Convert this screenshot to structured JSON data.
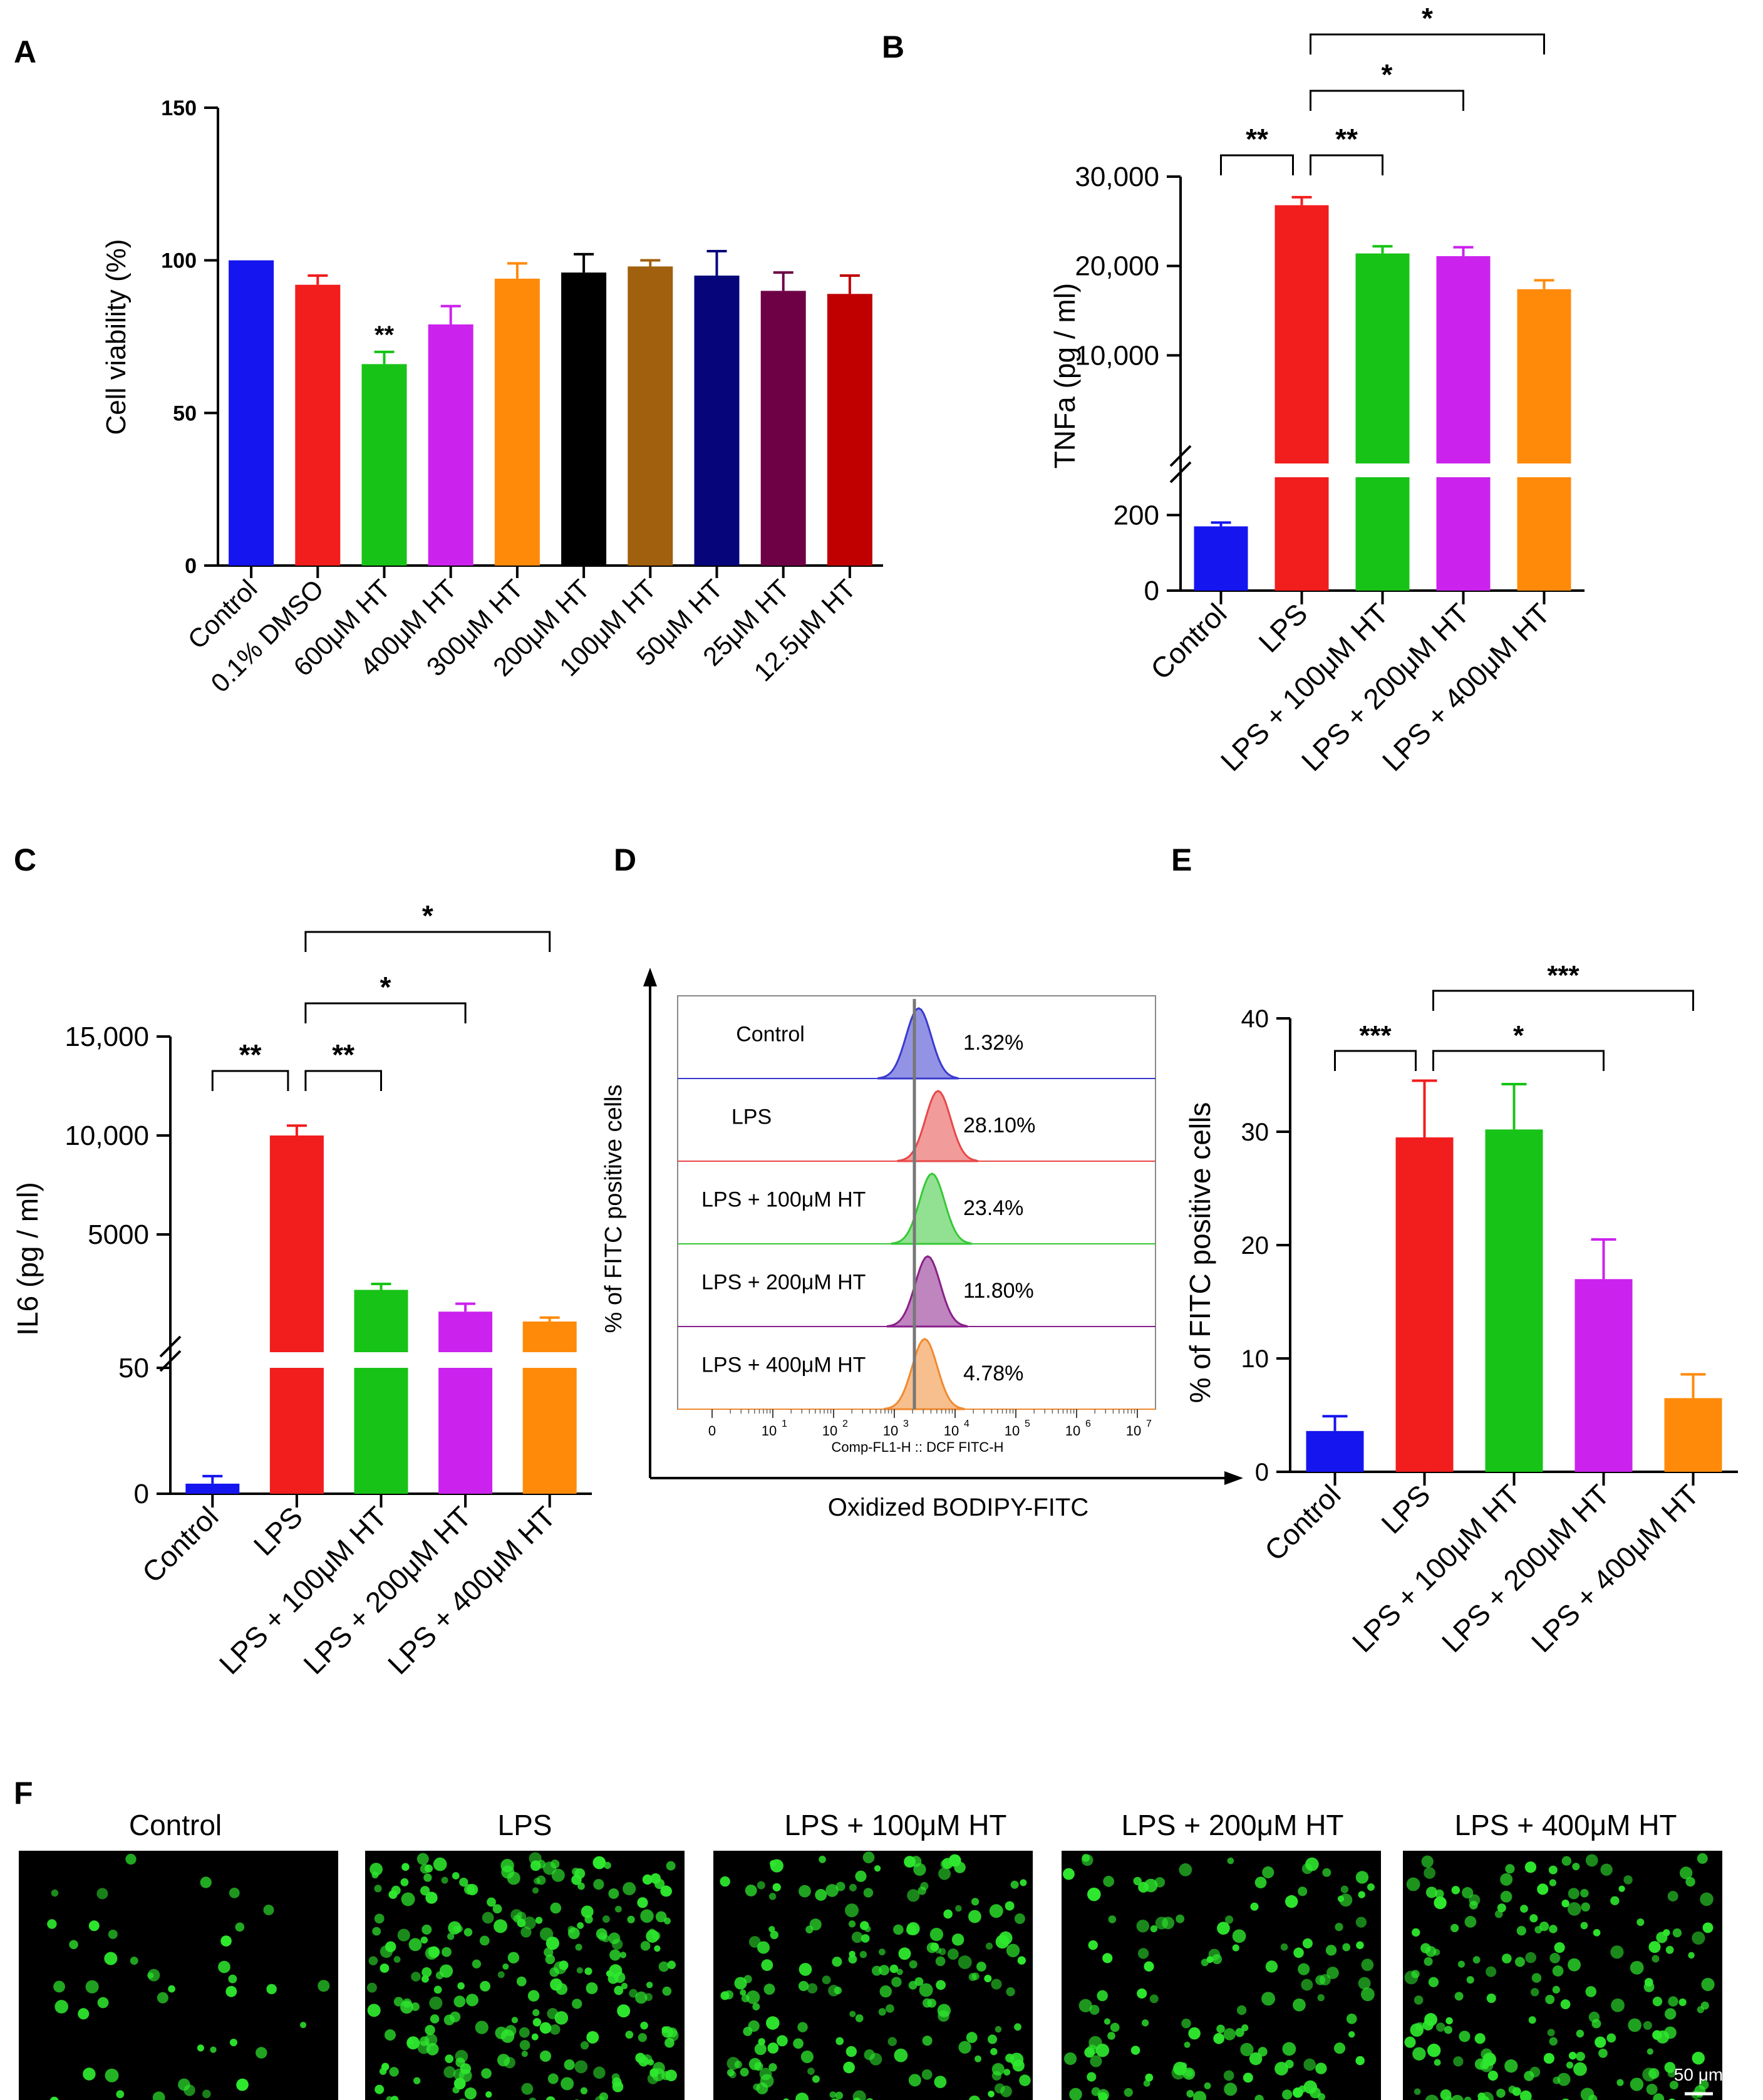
{
  "panel_labels": {
    "A": "A",
    "B": "B",
    "C": "C",
    "D": "D",
    "E": "E",
    "F": "F"
  },
  "chart_data": [
    {
      "id": "A",
      "type": "bar",
      "title": "",
      "xlabel": "",
      "ylabel": "Cell viability (%)",
      "ylim": [
        0,
        150
      ],
      "yticks": [
        "0",
        "50",
        "100",
        "150"
      ],
      "categories": [
        "Control",
        "0.1% DMSO",
        "600μM HT",
        "400μM HT",
        "300μM HT",
        "200μM HT",
        "100μM HT",
        "50μM HT",
        "25μM HT",
        "12.5μM HT"
      ],
      "values": [
        100,
        92,
        66,
        79,
        94,
        96,
        98,
        95,
        90,
        89
      ],
      "errors": [
        0,
        3,
        4,
        6,
        5,
        6,
        2,
        8,
        6,
        6
      ],
      "colors": [
        "#1515f0",
        "#f21d1d",
        "#17c317",
        "#cc22ee",
        "#ff8a0a",
        "#000000",
        "#a0600e",
        "#06067a",
        "#6e0046",
        "#c00000"
      ],
      "annotations": [
        {
          "category": "600μM HT",
          "label": "**"
        }
      ]
    },
    {
      "id": "B",
      "type": "bar",
      "title": "",
      "xlabel": "",
      "ylabel": "TNFa (pg / ml)",
      "axis_break": true,
      "lower_range": [
        0,
        300
      ],
      "upper_range": [
        0,
        30000
      ],
      "yticks_lower": [
        "0",
        "200"
      ],
      "yticks_upper": [
        "10,000",
        "20,000",
        "30,000"
      ],
      "categories": [
        "Control",
        "LPS",
        "LPS + 100μM HT",
        "LPS + 200μM HT",
        "LPS + 400μM HT"
      ],
      "values": [
        170,
        26800,
        21400,
        21100,
        17400
      ],
      "errors": [
        10,
        900,
        800,
        1000,
        1000
      ],
      "colors": [
        "#1515f0",
        "#f21d1d",
        "#17c317",
        "#cc22ee",
        "#ff8a0a"
      ],
      "significance": [
        {
          "from": "Control",
          "to": "LPS",
          "label": "**"
        },
        {
          "from": "LPS",
          "to": "LPS + 100μM HT",
          "label": "**"
        },
        {
          "from": "LPS",
          "to": "LPS + 200μM HT",
          "label": "*"
        },
        {
          "from": "LPS",
          "to": "LPS + 400μM HT",
          "label": "*"
        }
      ]
    },
    {
      "id": "C",
      "type": "bar",
      "title": "",
      "xlabel": "",
      "ylabel": "IL6 (pg / ml)",
      "axis_break": true,
      "lower_range": [
        0,
        50
      ],
      "upper_range": [
        0,
        15000
      ],
      "yticks_lower": [
        "0",
        "50"
      ],
      "yticks_upper": [
        "5000",
        "10,000",
        "15,000"
      ],
      "categories": [
        "Control",
        "LPS",
        "LPS + 100μM HT",
        "LPS + 200μM HT",
        "LPS + 400μM HT"
      ],
      "values": [
        4,
        10000,
        2200,
        1100,
        600
      ],
      "errors": [
        3,
        500,
        300,
        400,
        200
      ],
      "colors": [
        "#1515f0",
        "#f21d1d",
        "#17c317",
        "#cc22ee",
        "#ff8a0a"
      ],
      "significance": [
        {
          "from": "Control",
          "to": "LPS",
          "label": "**"
        },
        {
          "from": "LPS",
          "to": "LPS + 100μM HT",
          "label": "**"
        },
        {
          "from": "LPS",
          "to": "LPS + 200μM HT",
          "label": "*"
        },
        {
          "from": "LPS",
          "to": "LPS + 400μM HT",
          "label": "*"
        }
      ]
    },
    {
      "id": "D",
      "type": "histogram",
      "xlabel": "Oxidized BODIPY-FITC",
      "ylabel": "% of FITC positive cells",
      "inner_xlabel": "Comp-FL1-H :: DCF FITC-H",
      "xtick_labels": [
        "0",
        "10",
        "10",
        "10",
        "10",
        "10",
        "10",
        "10"
      ],
      "xtick_exponents": [
        "",
        "1",
        "2",
        "3",
        "4",
        "5",
        "6",
        "7"
      ],
      "rows": [
        {
          "label": "Control",
          "percent": "1.32%",
          "color": "#3a3ad0",
          "peak": 3.4
        },
        {
          "label": "LPS",
          "percent": "28.10%",
          "color": "#e84848",
          "peak": 3.72
        },
        {
          "label": "LPS + 100μM HT",
          "percent": "23.4%",
          "color": "#38c838",
          "peak": 3.62
        },
        {
          "label": "LPS + 200μM HT",
          "percent": "11.80%",
          "color": "#8a208a",
          "peak": 3.55
        },
        {
          "label": "LPS + 400μM HT",
          "percent": "4.78%",
          "color": "#f08a30",
          "peak": 3.5
        }
      ]
    },
    {
      "id": "E",
      "type": "bar",
      "title": "",
      "xlabel": "",
      "ylabel": "% of FITC positive cells",
      "ylim": [
        0,
        40
      ],
      "yticks": [
        "0",
        "10",
        "20",
        "30",
        "40"
      ],
      "categories": [
        "Control",
        "LPS",
        "LPS + 100μM HT",
        "LPS + 200μM HT",
        "LPS + 400μM HT"
      ],
      "values": [
        3.6,
        29.5,
        30.2,
        17.0,
        6.5
      ],
      "errors": [
        1.3,
        5.0,
        4.0,
        3.5,
        2.1
      ],
      "colors": [
        "#1515f0",
        "#f21d1d",
        "#17c317",
        "#cc22ee",
        "#ff8a0a"
      ],
      "significance": [
        {
          "from": "Control",
          "to": "LPS",
          "label": "***"
        },
        {
          "from": "LPS",
          "to": "LPS + 200μM HT",
          "label": "*"
        },
        {
          "from": "LPS",
          "to": "LPS + 400μM HT",
          "label": "***"
        }
      ]
    }
  ],
  "microscopy": {
    "titles": [
      "Control",
      "LPS",
      "LPS + 100μM HT",
      "LPS + 200μM HT",
      "LPS + 400μM HT"
    ],
    "scale_bar": "50 μm",
    "cell_color": "#2ee82e",
    "densities": [
      45,
      260,
      190,
      140,
      200
    ]
  }
}
